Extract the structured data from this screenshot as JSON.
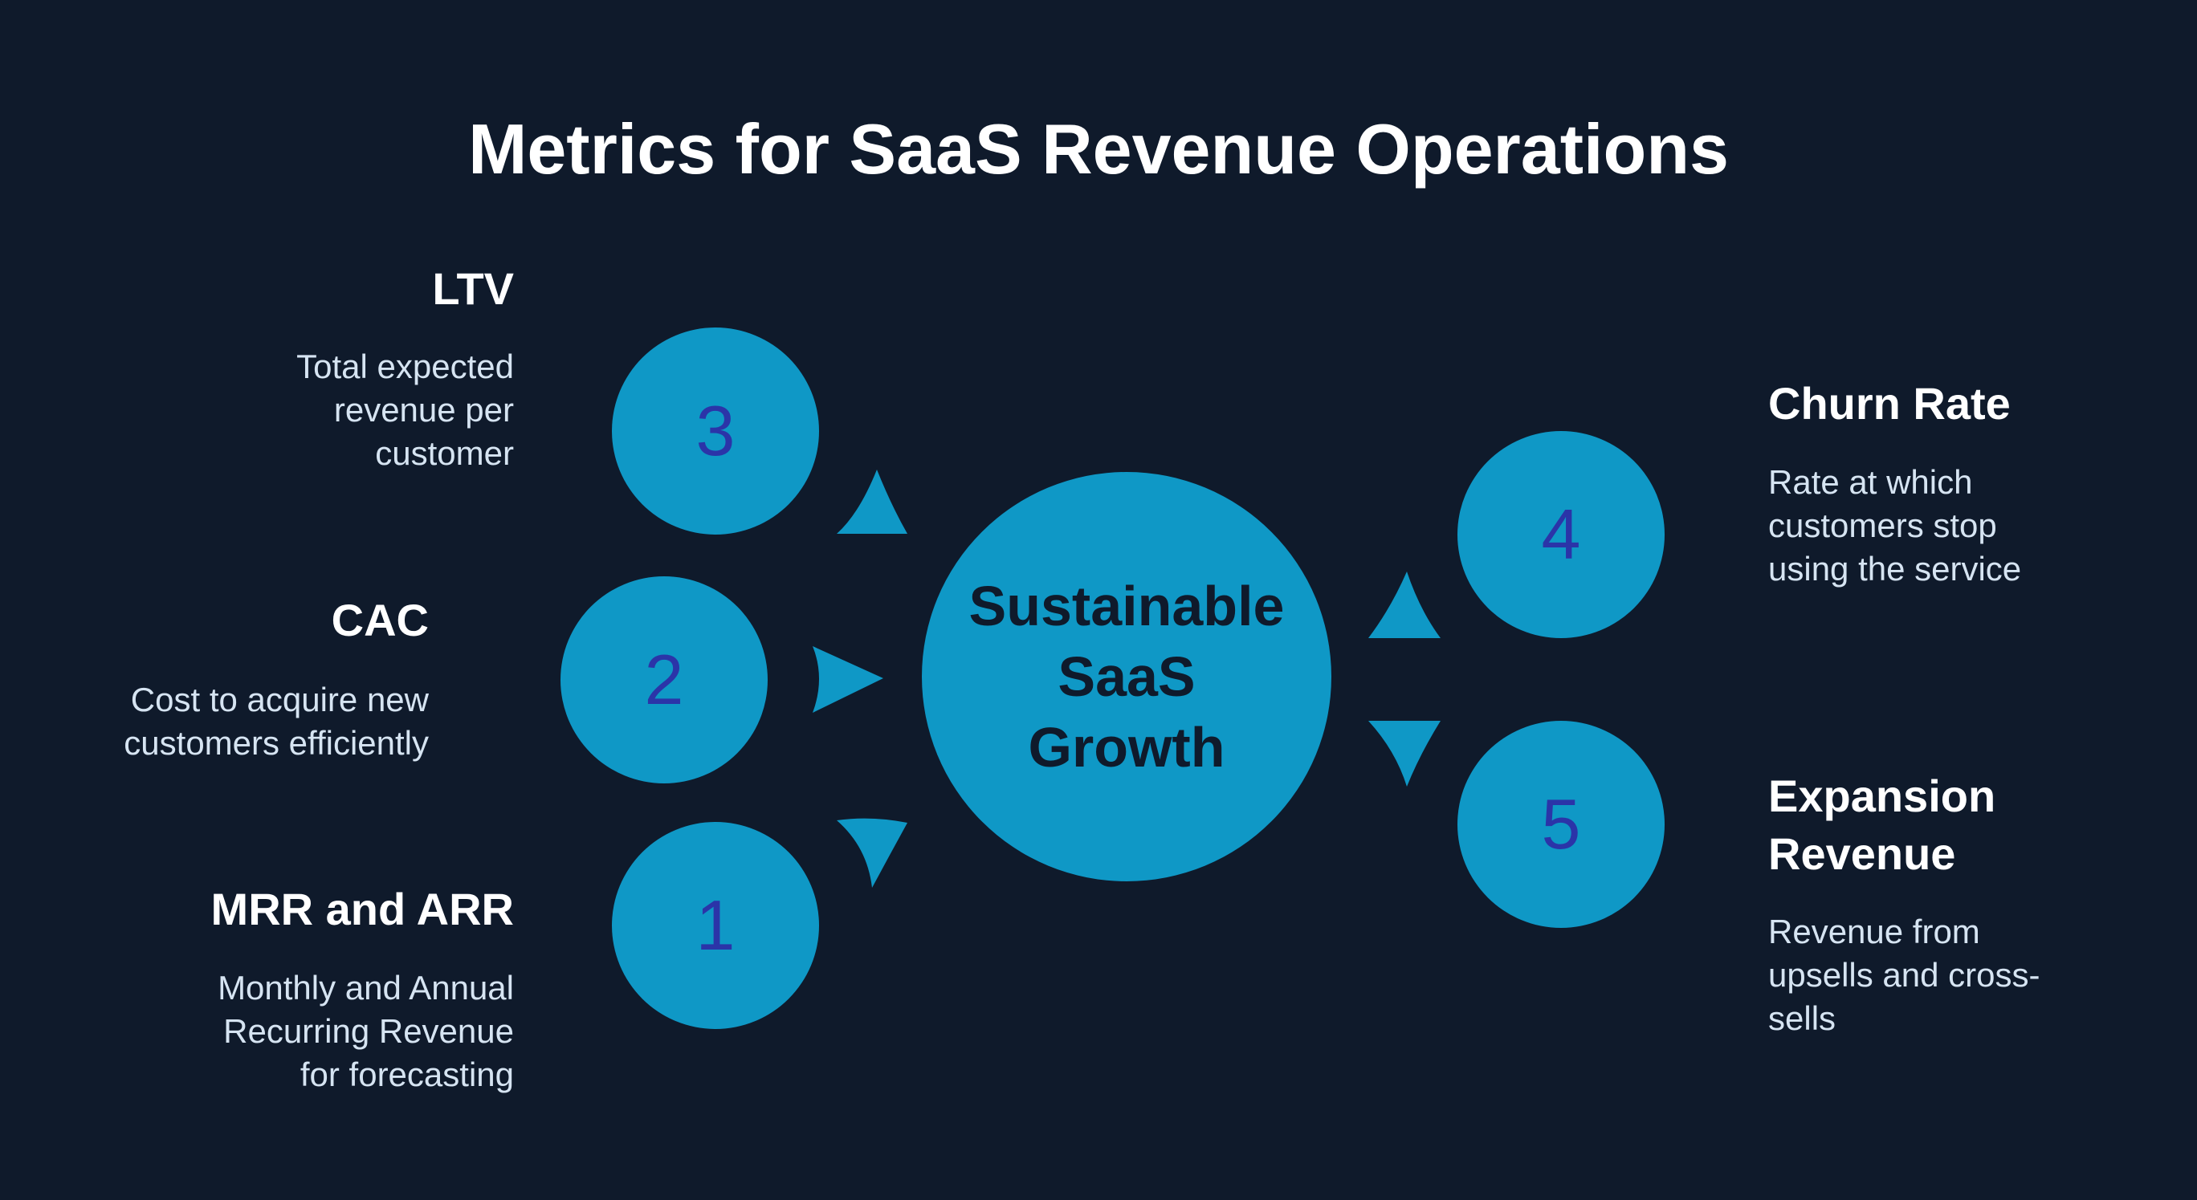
{
  "title": "Metrics for SaaS Revenue Operations",
  "center": {
    "lines": [
      "Sustainable",
      "SaaS",
      "Growth"
    ]
  },
  "nodes": [
    {
      "number": "1",
      "label": "MRR and ARR",
      "description": [
        "Monthly and Annual",
        "Recurring Revenue",
        "for forecasting"
      ]
    },
    {
      "number": "2",
      "label": "CAC",
      "description": [
        "Cost to acquire new",
        "customers efficiently"
      ]
    },
    {
      "number": "3",
      "label": "LTV",
      "description": [
        "Total expected",
        "revenue per",
        "customer"
      ]
    },
    {
      "number": "4",
      "label": "Churn Rate",
      "description": [
        "Rate at which",
        "customers stop",
        "using the service"
      ]
    },
    {
      "number": "5",
      "label": [
        "Expansion",
        "Revenue"
      ],
      "description": [
        "Revenue from",
        "upsells and cross-",
        "sells"
      ]
    }
  ],
  "colors": {
    "background": "#0f1a2b",
    "circle": "#0f98c6",
    "number": "#2b34a8",
    "center_text": "#0f1a2b"
  }
}
